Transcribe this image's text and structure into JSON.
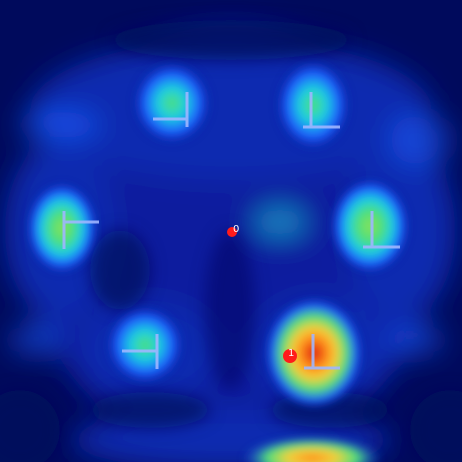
{
  "colors": {
    "background": "#000a5c",
    "low": "#0a1f9e",
    "mid": "#1d5cff",
    "cyan": "#1ecfe0",
    "green": "#4fe07a",
    "yellow": "#f4d03a",
    "orange": "#ff8a1a",
    "red": "#d8160f",
    "marker": "#ff1b1b",
    "glyph": "#9fb6ff",
    "label": "#ffffff"
  },
  "heatmap": {
    "colormap": "jet",
    "hotspots": [
      {
        "id": "top-left",
        "intensity": 0.45
      },
      {
        "id": "top-right",
        "intensity": 0.42
      },
      {
        "id": "middle-left",
        "intensity": 0.5
      },
      {
        "id": "middle-right",
        "intensity": 0.65
      },
      {
        "id": "bottom-left",
        "intensity": 0.4
      },
      {
        "id": "bottom-right",
        "intensity": 0.95
      },
      {
        "id": "bottom-edge",
        "intensity": 0.85
      }
    ]
  },
  "markers": [
    {
      "label": "0"
    },
    {
      "label": "1"
    }
  ]
}
